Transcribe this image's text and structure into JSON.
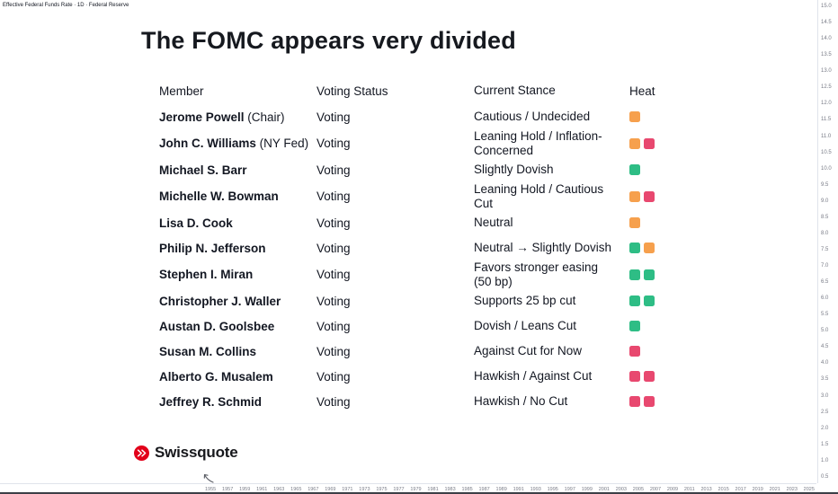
{
  "chart_info": {
    "symbol_line": "Effective Federal Funds Rate · 1D · Federal Reserve"
  },
  "title": "The FOMC appears very divided",
  "table": {
    "headers": [
      "Member",
      "Voting Status",
      "Current Stance",
      "Heat"
    ],
    "rows": [
      {
        "member": "Jerome Powell",
        "suffix": " (Chair)",
        "voting": "Voting",
        "stance": "Cautious / Undecided",
        "heat": [
          "orange"
        ]
      },
      {
        "member": "John C. Williams",
        "suffix": " (NY Fed)",
        "voting": "Voting",
        "stance": "Leaning Hold / Inflation-Concerned",
        "heat": [
          "orange",
          "pink"
        ]
      },
      {
        "member": "Michael S. Barr",
        "suffix": "",
        "voting": "Voting",
        "stance": "Slightly Dovish",
        "heat": [
          "green"
        ]
      },
      {
        "member": "Michelle W. Bowman",
        "suffix": "",
        "voting": "Voting",
        "stance": "Leaning Hold / Cautious Cut",
        "heat": [
          "orange",
          "pink"
        ]
      },
      {
        "member": "Lisa D. Cook",
        "suffix": "",
        "voting": "Voting",
        "stance": "Neutral",
        "heat": [
          "orange"
        ]
      },
      {
        "member": "Philip N. Jefferson",
        "suffix": "",
        "voting": "Voting",
        "stance": "Neutral → Slightly Dovish",
        "heat": [
          "green",
          "orange"
        ]
      },
      {
        "member": "Stephen I. Miran",
        "suffix": "",
        "voting": "Voting",
        "stance": "Favors stronger easing (50 bp)",
        "heat": [
          "green",
          "green"
        ]
      },
      {
        "member": "Christopher J. Waller",
        "suffix": "",
        "voting": "Voting",
        "stance": "Supports 25 bp cut",
        "heat": [
          "green",
          "green"
        ]
      },
      {
        "member": "Austan D. Goolsbee",
        "suffix": "",
        "voting": "Voting",
        "stance": "Dovish / Leans Cut",
        "heat": [
          "green"
        ]
      },
      {
        "member": "Susan M. Collins",
        "suffix": "",
        "voting": "Voting",
        "stance": "Against Cut for Now",
        "heat": [
          "pink"
        ]
      },
      {
        "member": "Alberto G. Musalem",
        "suffix": "",
        "voting": "Voting",
        "stance": "Hawkish / Against Cut",
        "heat": [
          "pink",
          "pink"
        ]
      },
      {
        "member": "Jeffrey R. Schmid",
        "suffix": "",
        "voting": "Voting",
        "stance": "Hawkish / No Cut",
        "heat": [
          "pink",
          "pink"
        ]
      }
    ]
  },
  "branding": {
    "name": "Swissquote"
  },
  "colors": {
    "orange": "#F6A04D",
    "green": "#2EBD85",
    "pink": "#E8486F",
    "brand_red": "#E2001A",
    "axis_text": "#787b86",
    "axis_line": "#e0e3eb"
  },
  "axes": {
    "price": [
      "15.0",
      "14.5",
      "14.0",
      "13.5",
      "13.0",
      "12.5",
      "12.0",
      "11.5",
      "11.0",
      "10.5",
      "10.0",
      "9.5",
      "9.0",
      "8.5",
      "8.0",
      "7.5",
      "7.0",
      "6.5",
      "6.0",
      "5.5",
      "5.0",
      "4.5",
      "4.0",
      "3.5",
      "3.0",
      "2.5",
      "2.0",
      "1.5",
      "1.0",
      "0.5"
    ],
    "time": [
      "1955",
      "1957",
      "1959",
      "1961",
      "1963",
      "1965",
      "1967",
      "1969",
      "1971",
      "1973",
      "1975",
      "1977",
      "1979",
      "1981",
      "1983",
      "1985",
      "1987",
      "1989",
      "1991",
      "1993",
      "1995",
      "1997",
      "1999",
      "2001",
      "2003",
      "2005",
      "2007",
      "2009",
      "2011",
      "2013",
      "2015",
      "2017",
      "2019",
      "2021",
      "2023",
      "2025"
    ]
  }
}
